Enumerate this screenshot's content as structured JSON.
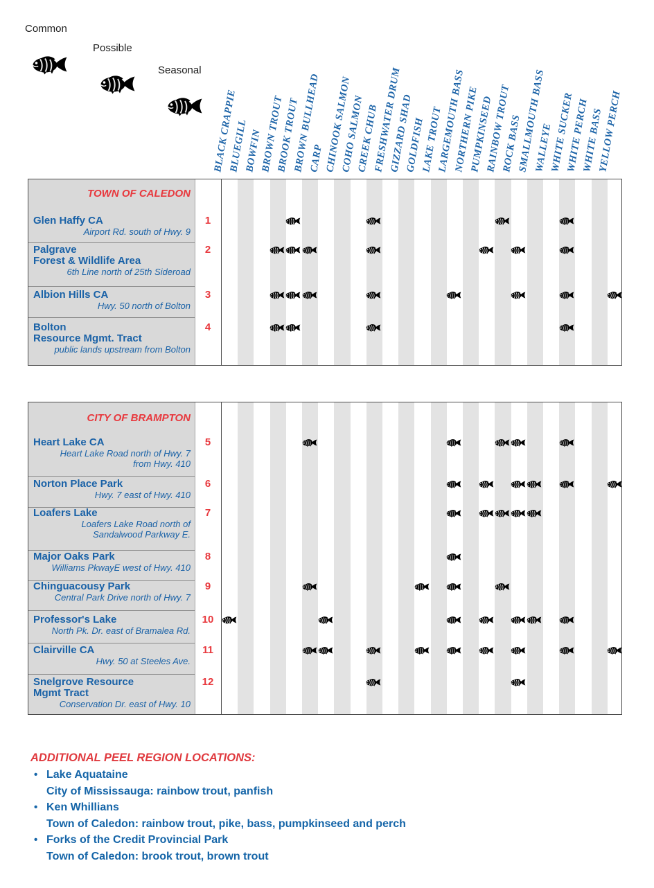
{
  "legend": {
    "items": [
      {
        "label": "Common",
        "status": "common"
      },
      {
        "label": "Possible",
        "status": "possible"
      },
      {
        "label": "Seasonal",
        "status": "seasonal"
      }
    ]
  },
  "status_colors": {
    "common": "#d6343b",
    "possible": "#157a40",
    "seasonal": "#1a67b4"
  },
  "text_colors": {
    "species_header": "#1d64a8",
    "location_text": "#1a62a7",
    "accent_red": "#e8383d"
  },
  "species": [
    "BLACK CRAPPIE",
    "BLUEGILL",
    "BOWFIN",
    "BROWN TROUT",
    "BROOK TROUT",
    "BROWN BULLHEAD",
    "CARP",
    "CHINOOK SALMON",
    "COHO SALMON",
    "CREEK CHUB",
    "FRESHWATER DRUM",
    "GIZZARD SHAD",
    "GOLDFISH",
    "LAKE TROUT",
    "LARGEMOUTH BASS",
    "NORTHERN PIKE",
    "PUMPKINSEED",
    "RAINBOW TROUT",
    "ROCK BASS",
    "SMALLMOUTH BASS",
    "WALLEYE",
    "WHITE SUCKER",
    "WHITE PERCH",
    "WHITE BASS",
    "YELLOW PERCH"
  ],
  "tables": [
    {
      "title": "TOWN OF CALEDON",
      "rows": [
        {
          "num": "1",
          "name_lines": [
            "Glen Haffy CA"
          ],
          "address_lines": [
            "Airport Rd. south of Hwy. 9"
          ],
          "fish": [
            {
              "species": "BROOK TROUT",
              "status": "common"
            },
            {
              "species": "CREEK CHUB",
              "status": "common"
            },
            {
              "species": "RAINBOW TROUT",
              "status": "common"
            },
            {
              "species": "WHITE SUCKER",
              "status": "common"
            }
          ]
        },
        {
          "num": "2",
          "name_lines": [
            "Palgrave",
            "Forest & Wildlife Area"
          ],
          "address_lines": [
            "6th Line north of 25th Sideroad"
          ],
          "fish": [
            {
              "species": "BROWN TROUT",
              "status": "common"
            },
            {
              "species": "BROOK TROUT",
              "status": "possible"
            },
            {
              "species": "BROWN BULLHEAD",
              "status": "common"
            },
            {
              "species": "CREEK CHUB",
              "status": "possible"
            },
            {
              "species": "PUMPKINSEED",
              "status": "possible"
            },
            {
              "species": "ROCK BASS",
              "status": "possible"
            },
            {
              "species": "WHITE SUCKER",
              "status": "common"
            }
          ]
        },
        {
          "num": "3",
          "name_lines": [
            "Albion Hills CA"
          ],
          "address_lines": [
            "Hwy. 50 north of Bolton"
          ],
          "fish": [
            {
              "species": "BROWN TROUT",
              "status": "common"
            },
            {
              "species": "BROOK TROUT",
              "status": "possible"
            },
            {
              "species": "BROWN BULLHEAD",
              "status": "common"
            },
            {
              "species": "CREEK CHUB",
              "status": "common"
            },
            {
              "species": "LARGEMOUTH BASS",
              "status": "possible"
            },
            {
              "species": "ROCK BASS",
              "status": "common"
            },
            {
              "species": "WHITE SUCKER",
              "status": "common"
            },
            {
              "species": "YELLOW PERCH",
              "status": "possible"
            }
          ]
        },
        {
          "num": "4",
          "name_lines": [
            "Bolton",
            "Resource Mgmt. Tract"
          ],
          "address_lines": [
            "public lands upstream from Bolton"
          ],
          "fish": [
            {
              "species": "BROWN TROUT",
              "status": "common"
            },
            {
              "species": "BROOK TROUT",
              "status": "possible"
            },
            {
              "species": "CREEK CHUB",
              "status": "common"
            },
            {
              "species": "WHITE SUCKER",
              "status": "common"
            }
          ]
        }
      ]
    },
    {
      "title": "CITY OF BRAMPTON",
      "rows": [
        {
          "num": "5",
          "name_lines": [
            "Heart Lake CA"
          ],
          "address_lines": [
            "Heart Lake Road north of Hwy. 7",
            "from Hwy. 410"
          ],
          "fish": [
            {
              "species": "BROWN BULLHEAD",
              "status": "common"
            },
            {
              "species": "LARGEMOUTH BASS",
              "status": "common"
            },
            {
              "species": "RAINBOW TROUT",
              "status": "common"
            },
            {
              "species": "ROCK BASS",
              "status": "common"
            },
            {
              "species": "WHITE SUCKER",
              "status": "common"
            }
          ]
        },
        {
          "num": "6",
          "name_lines": [
            "Norton Place Park"
          ],
          "address_lines": [
            "Hwy. 7 east of Hwy. 410"
          ],
          "fish": [
            {
              "species": "LARGEMOUTH BASS",
              "status": "common"
            },
            {
              "species": "PUMPKINSEED",
              "status": "common"
            },
            {
              "species": "ROCK BASS",
              "status": "common"
            },
            {
              "species": "SMALLMOUTH BASS",
              "status": "possible"
            },
            {
              "species": "WHITE SUCKER",
              "status": "possible"
            },
            {
              "species": "YELLOW PERCH",
              "status": "common"
            }
          ]
        },
        {
          "num": "7",
          "name_lines": [
            "Loafers Lake"
          ],
          "address_lines": [
            "Loafers Lake Road north of",
            "Sandalwood Parkway E."
          ],
          "fish": [
            {
              "species": "LARGEMOUTH BASS",
              "status": "common"
            },
            {
              "species": "PUMPKINSEED",
              "status": "common"
            },
            {
              "species": "RAINBOW TROUT",
              "status": "possible"
            },
            {
              "species": "ROCK BASS",
              "status": "common"
            },
            {
              "species": "SMALLMOUTH BASS",
              "status": "possible"
            }
          ]
        },
        {
          "num": "8",
          "name_lines": [
            "Major Oaks Park"
          ],
          "address_lines": [
            "Williams PkwayE west of Hwy. 410"
          ],
          "fish": [
            {
              "species": "LARGEMOUTH BASS",
              "status": "common"
            }
          ]
        },
        {
          "num": "9",
          "name_lines": [
            "Chinguacousy Park"
          ],
          "address_lines": [
            "Central Park Drive north of Hwy. 7"
          ],
          "fish": [
            {
              "species": "BROWN BULLHEAD",
              "status": "possible"
            },
            {
              "species": "GOLDFISH",
              "status": "possible"
            },
            {
              "species": "LARGEMOUTH BASS",
              "status": "possible"
            },
            {
              "species": "RAINBOW TROUT",
              "status": "possible"
            }
          ]
        },
        {
          "num": "10",
          "name_lines": [
            "Professor's Lake"
          ],
          "address_lines": [
            "North Pk. Dr. east of Bramalea Rd."
          ],
          "fish": [
            {
              "species": "BLACK CRAPPIE",
              "status": "possible"
            },
            {
              "species": "CARP",
              "status": "possible"
            },
            {
              "species": "LARGEMOUTH BASS",
              "status": "possible"
            },
            {
              "species": "PUMPKINSEED",
              "status": "common"
            },
            {
              "species": "ROCK BASS",
              "status": "common"
            },
            {
              "species": "SMALLMOUTH BASS",
              "status": "possible"
            },
            {
              "species": "WHITE SUCKER",
              "status": "common"
            }
          ]
        },
        {
          "num": "11",
          "name_lines": [
            "Clairville CA"
          ],
          "address_lines": [
            "Hwy. 50 at Steeles Ave."
          ],
          "fish": [
            {
              "species": "BROWN BULLHEAD",
              "status": "common"
            },
            {
              "species": "CARP",
              "status": "common"
            },
            {
              "species": "CREEK CHUB",
              "status": "common"
            },
            {
              "species": "GOLDFISH",
              "status": "common"
            },
            {
              "species": "LARGEMOUTH BASS",
              "status": "common"
            },
            {
              "species": "PUMPKINSEED",
              "status": "common"
            },
            {
              "species": "ROCK BASS",
              "status": "common"
            },
            {
              "species": "WHITE SUCKER",
              "status": "common"
            },
            {
              "species": "YELLOW PERCH",
              "status": "possible"
            }
          ]
        },
        {
          "num": "12",
          "name_lines": [
            "Snelgrove Resource",
            "Mgmt Tract"
          ],
          "address_lines": [
            "Conservation Dr. east of Hwy. 10"
          ],
          "fish": [
            {
              "species": "CREEK CHUB",
              "status": "common"
            },
            {
              "species": "ROCK BASS",
              "status": "common"
            }
          ]
        }
      ]
    }
  ],
  "additional": {
    "title": "ADDITIONAL PEEL REGION LOCATIONS:",
    "items": [
      {
        "name": "Lake Aquataine",
        "detail": "City of Mississauga: rainbow trout, panfish"
      },
      {
        "name": "Ken Whillians",
        "detail": "Town of Caledon: rainbow trout, pike, bass, pumpkinseed and perch"
      },
      {
        "name": "Forks of the Credit Provincial Park",
        "detail": "Town of Caledon: brook trout, brown trout"
      }
    ]
  }
}
